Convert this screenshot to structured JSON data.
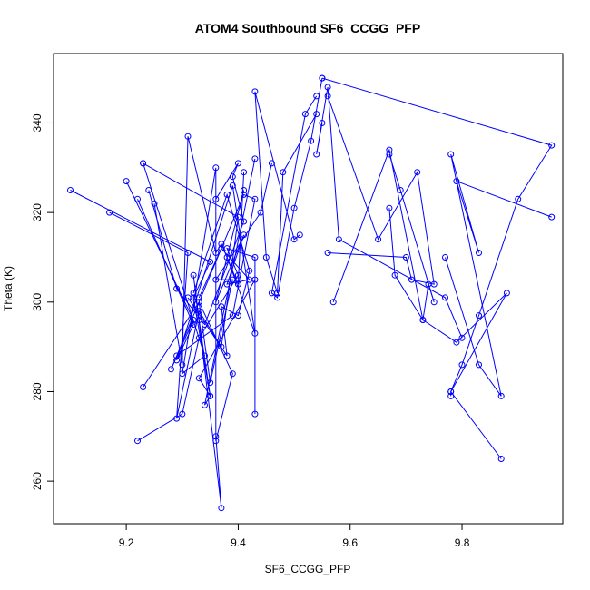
{
  "chart_data": {
    "type": "line",
    "title": "ATOM4 Southbound SF6_CCGG_PFP",
    "xlabel": "SF6_CCGG_PFP",
    "ylabel": "Theta (K)",
    "xlim": [
      9.07,
      9.98
    ],
    "ylim": [
      250.5,
      355.5
    ],
    "x_ticks": [
      9.2,
      9.4,
      9.6,
      9.8
    ],
    "x_tick_labels": [
      "9.2",
      "9.4",
      "9.6",
      "9.8"
    ],
    "y_ticks": [
      260,
      280,
      300,
      320,
      340
    ],
    "y_tick_labels": [
      "260",
      "280",
      "300",
      "320",
      "340"
    ],
    "series_color": "#0000ff",
    "marker": "open-circle",
    "grid": false,
    "segments": [
      {
        "x": [
          9.55,
          9.96,
          9.9,
          9.83,
          9.8,
          9.78,
          9.87
        ],
        "y": [
          350,
          335,
          323,
          297,
          286,
          280,
          265
        ]
      },
      {
        "x": [
          9.96,
          9.79,
          9.83,
          9.78,
          9.87,
          9.83,
          9.77
        ],
        "y": [
          319,
          327,
          311,
          333,
          279,
          286,
          310
        ]
      },
      {
        "x": [
          9.78,
          9.78,
          9.88,
          9.79,
          9.73,
          9.67,
          9.57
        ],
        "y": [
          279,
          280,
          302,
          291,
          296,
          334,
          300
        ]
      },
      {
        "x": [
          9.56,
          9.7,
          9.71,
          9.75,
          9.72,
          9.65,
          9.56
        ],
        "y": [
          311,
          310,
          305,
          304,
          329,
          314,
          346
        ]
      },
      {
        "x": [
          9.55,
          9.54,
          9.56,
          9.58,
          9.77,
          9.8
        ],
        "y": [
          340,
          333,
          348,
          314,
          301,
          292
        ]
      },
      {
        "x": [
          9.67,
          9.68,
          9.73,
          9.74,
          9.75,
          9.69,
          9.67
        ],
        "y": [
          321,
          306,
          296,
          304,
          300,
          325,
          333
        ]
      },
      {
        "x": [
          9.55,
          9.53,
          9.5,
          9.47,
          9.46,
          9.52,
          9.54
        ],
        "y": [
          350,
          336,
          321,
          301,
          302,
          342,
          346
        ]
      },
      {
        "x": [
          9.54,
          9.48,
          9.47,
          9.45,
          9.43,
          9.5,
          9.51
        ],
        "y": [
          342,
          329,
          302,
          310,
          347,
          314,
          315
        ]
      },
      {
        "x": [
          9.43,
          9.34,
          9.35,
          9.33,
          9.32,
          9.37,
          9.36
        ],
        "y": [
          332,
          277,
          279,
          296,
          306,
          254,
          270
        ]
      },
      {
        "x": [
          9.1,
          9.35,
          9.32,
          9.35,
          9.33,
          9.43
        ],
        "y": [
          325,
          309,
          301,
          279,
          283,
          305
        ]
      },
      {
        "x": [
          9.17,
          9.31,
          9.29,
          9.33,
          9.37,
          9.4,
          9.23
        ],
        "y": [
          320,
          311,
          274,
          298,
          290,
          319,
          331
        ]
      },
      {
        "x": [
          9.23,
          9.34,
          9.3,
          9.36,
          9.36,
          9.39,
          9.33
        ],
        "y": [
          331,
          288,
          284,
          330,
          269,
          284,
          300
        ]
      },
      {
        "x": [
          9.22,
          9.32,
          9.29,
          9.39,
          9.43,
          9.38
        ],
        "y": [
          323,
          295,
          287,
          326,
          293,
          310
        ]
      },
      {
        "x": [
          9.2,
          9.32,
          9.28,
          9.41,
          9.43,
          9.39,
          9.29
        ],
        "y": [
          327,
          296,
          285,
          324,
          323,
          297,
          288
        ]
      },
      {
        "x": [
          9.25,
          9.3,
          9.31,
          9.36,
          9.37,
          9.4,
          9.41
        ],
        "y": [
          322,
          286,
          337,
          311,
          313,
          304,
          329
        ]
      },
      {
        "x": [
          9.22,
          9.3,
          9.33,
          9.4,
          9.38,
          9.43,
          9.43
        ],
        "y": [
          269,
          275,
          292,
          306,
          312,
          310,
          275
        ]
      },
      {
        "x": [
          9.24,
          9.29,
          9.34,
          9.41,
          9.39,
          9.4,
          9.36
        ],
        "y": [
          325,
          303,
          295,
          318,
          328,
          331,
          323
        ]
      },
      {
        "x": [
          9.23,
          9.33,
          9.35,
          9.39,
          9.36,
          9.44,
          9.46
        ],
        "y": [
          281,
          300,
          282,
          305,
          305,
          320,
          331
        ]
      },
      {
        "x": [
          9.33,
          9.37,
          9.42,
          9.38,
          9.41,
          9.36,
          9.41
        ],
        "y": [
          301,
          312,
          305,
          304,
          315,
          300,
          325
        ]
      },
      {
        "x": [
          9.32,
          9.38,
          9.42,
          9.4,
          9.37,
          9.38,
          9.31
        ],
        "y": [
          302,
          324,
          307,
          297,
          299,
          288,
          301
        ]
      }
    ]
  }
}
